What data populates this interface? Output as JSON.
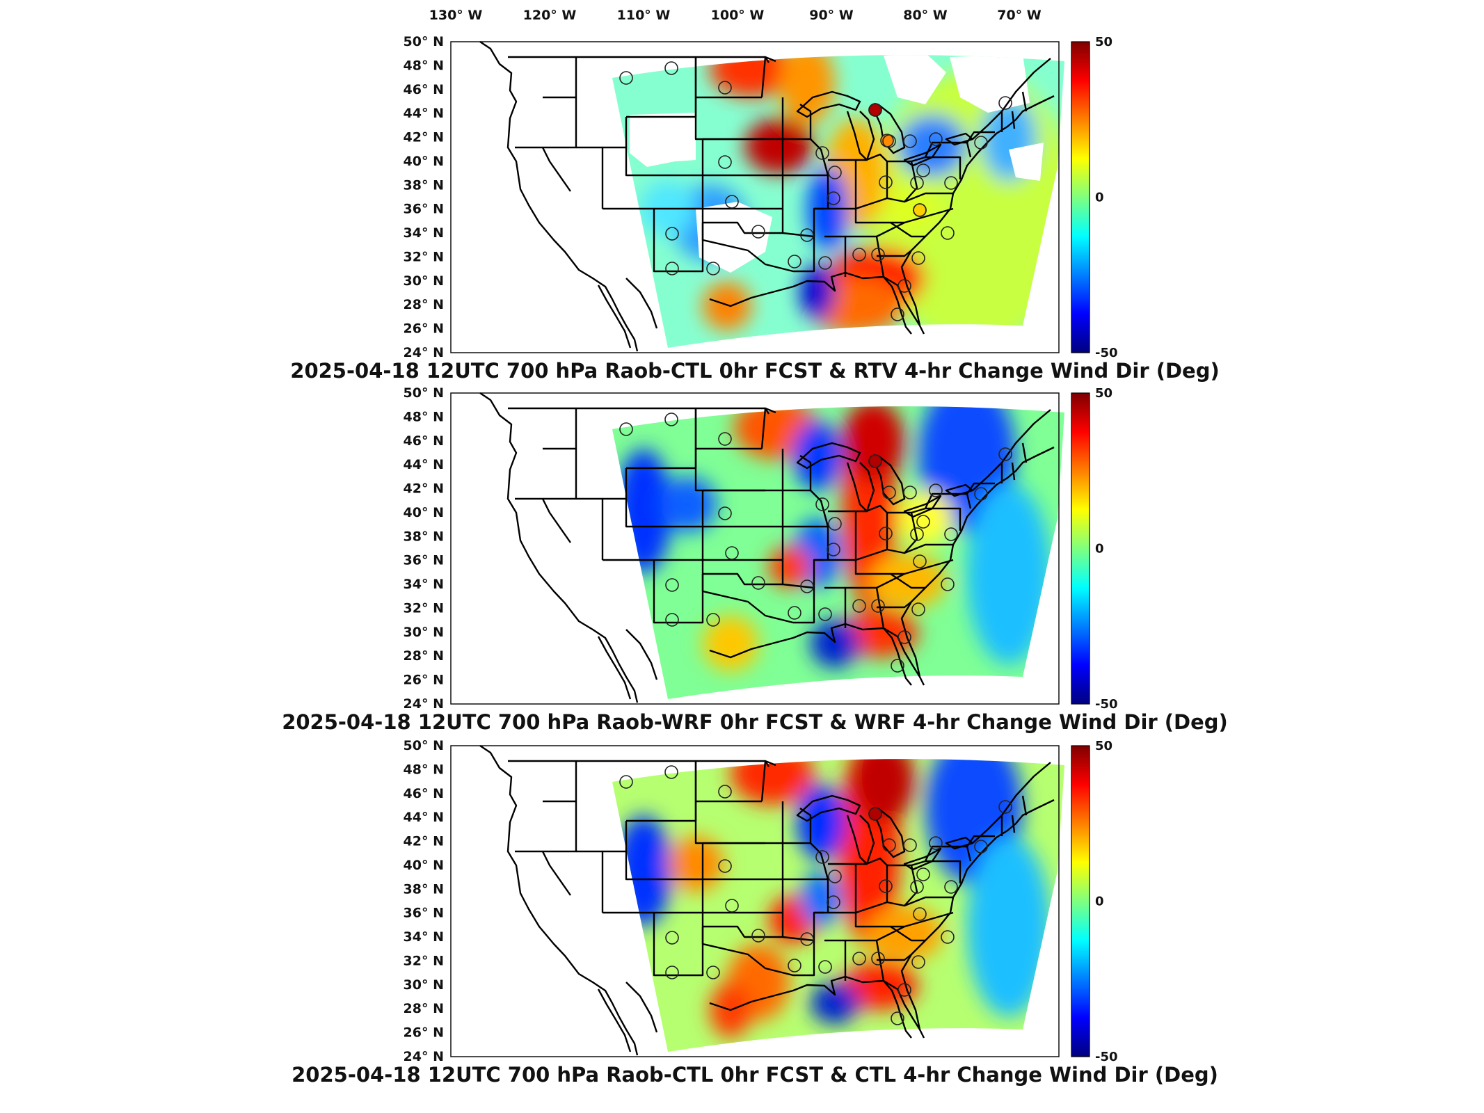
{
  "figure": {
    "lon_labels": [
      "130° W",
      "120° W",
      "110° W",
      "100° W",
      "90° W",
      "80° W",
      "70° W"
    ],
    "lat_labels": [
      "50° N",
      "48° N",
      "46° N",
      "44° N",
      "42° N",
      "40° N",
      "38° N",
      "36° N",
      "34° N",
      "32° N",
      "30° N",
      "28° N",
      "26° N",
      "24° N"
    ],
    "colorbar": {
      "max": "50",
      "mid": "0",
      "min": "-50",
      "colors": [
        "#00007f",
        "#0000ff",
        "#007fff",
        "#00ffff",
        "#7fff7f",
        "#ffff00",
        "#ff7f00",
        "#ff0000",
        "#7f0000"
      ]
    },
    "panels": [
      {
        "id": "ctl-rtv",
        "title": "2025-04-18 12UTC 700 hPa Raob-CTL 0hr FCST & RTV 4-hr Change Wind Dir (Deg)"
      },
      {
        "id": "wrf",
        "title": "2025-04-18 12UTC 700 hPa Raob-WRF 0hr FCST & WRF 4-hr Change Wind Dir (Deg)"
      },
      {
        "id": "ctl",
        "title": "2025-04-18 12UTC 700 hPa Raob-CTL 0hr FCST & CTL 4-hr Change Wind Dir (Deg)"
      }
    ]
  }
}
